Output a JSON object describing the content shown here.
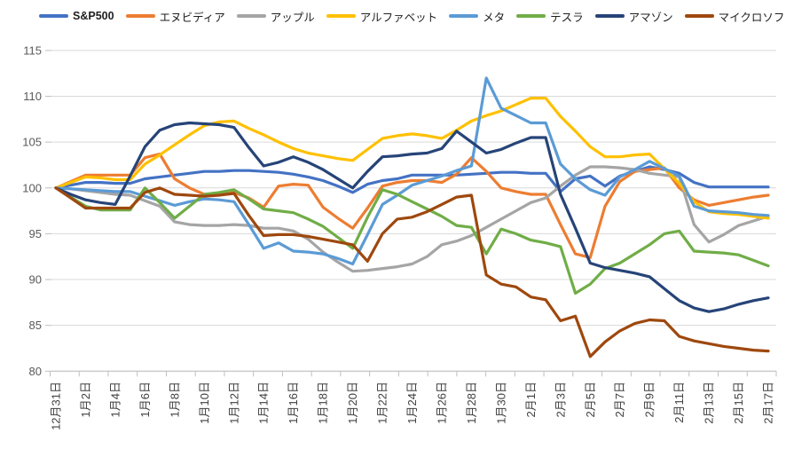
{
  "chart_data": {
    "type": "line",
    "title": "",
    "legend_position": "top",
    "grid": true,
    "ylim": [
      80,
      115
    ],
    "ytick_step": 5,
    "label_every": 2,
    "axis_colors": {
      "grid": "#D9D9D9",
      "axis": "#BFBFBF",
      "tick_text": "#595959",
      "x_label_text": "#404040"
    },
    "x": [
      "12月31日",
      "1月1日",
      "1月2日",
      "1月3日",
      "1月4日",
      "1月5日",
      "1月6日",
      "1月7日",
      "1月8日",
      "1月9日",
      "1月10日",
      "1月11日",
      "1月12日",
      "1月13日",
      "1月14日",
      "1月15日",
      "1月16日",
      "1月17日",
      "1月18日",
      "1月19日",
      "1月20日",
      "1月21日",
      "1月22日",
      "1月23日",
      "1月24日",
      "1月25日",
      "1月26日",
      "1月27日",
      "1月28日",
      "1月29日",
      "1月30日",
      "1月31日",
      "2月1日",
      "2月2日",
      "2月3日",
      "2月4日",
      "2月5日",
      "2月6日",
      "2月7日",
      "2月8日",
      "2月9日",
      "2月10日",
      "2月11日",
      "2月12日",
      "2月13日",
      "2月14日",
      "2月15日",
      "2月16日",
      "2月17日"
    ],
    "series": [
      {
        "key": "sp500",
        "name": "S&P500",
        "color": "#4472C4",
        "values": [
          100,
          100.3,
          100.6,
          100.6,
          100.5,
          100.5,
          101.0,
          101.2,
          101.4,
          101.6,
          101.8,
          101.8,
          101.9,
          101.9,
          101.8,
          101.7,
          101.5,
          101.2,
          100.8,
          100.2,
          99.5,
          100.4,
          100.8,
          101.0,
          101.4,
          101.4,
          101.4,
          101.4,
          101.5,
          101.6,
          101.7,
          101.7,
          101.6,
          101.6,
          99.6,
          101.0,
          101.3,
          100.2,
          101.3,
          101.8,
          102.3,
          102.0,
          101.6,
          100.6,
          100.1,
          100.1,
          100.1,
          100.1,
          100.1
        ]
      },
      {
        "key": "nvidia",
        "name": "エヌビディア",
        "color": "#ED7D31",
        "values": [
          100,
          100.7,
          101.4,
          101.4,
          101.4,
          101.4,
          103.3,
          103.7,
          101.0,
          100.0,
          99.3,
          99.3,
          99.5,
          98.9,
          97.9,
          100.2,
          100.4,
          100.3,
          97.9,
          96.7,
          95.6,
          97.8,
          100.2,
          100.6,
          100.8,
          100.8,
          100.6,
          101.5,
          103.3,
          101.8,
          100.0,
          99.6,
          99.3,
          99.3,
          96.0,
          92.8,
          92.4,
          98.0,
          100.7,
          101.8,
          102.0,
          102.2,
          100.0,
          98.7,
          98.1,
          98.4,
          98.7,
          99.0,
          99.2
        ]
      },
      {
        "key": "apple",
        "name": "アップル",
        "color": "#A5A5A5",
        "values": [
          100,
          99.9,
          99.7,
          99.5,
          99.3,
          99.2,
          98.6,
          98.0,
          96.3,
          96.0,
          95.9,
          95.9,
          96.0,
          95.9,
          95.6,
          95.6,
          95.3,
          94.4,
          93.0,
          91.9,
          90.9,
          91.0,
          91.2,
          91.4,
          91.7,
          92.5,
          93.8,
          94.2,
          94.8,
          95.7,
          96.6,
          97.5,
          98.4,
          98.9,
          100.2,
          101.4,
          102.3,
          102.3,
          102.2,
          102.0,
          101.6,
          101.4,
          101.2,
          96.0,
          94.1,
          94.9,
          95.9,
          96.4,
          96.9
        ]
      },
      {
        "key": "alphabet",
        "name": "アルファベット",
        "color": "#FFC000",
        "values": [
          100,
          100.6,
          101.2,
          101.1,
          100.9,
          100.9,
          102.6,
          103.6,
          104.7,
          105.8,
          106.8,
          107.2,
          107.3,
          106.5,
          105.8,
          105.0,
          104.3,
          103.8,
          103.5,
          103.2,
          103.0,
          104.2,
          105.4,
          105.7,
          105.9,
          105.7,
          105.4,
          106.3,
          107.3,
          107.9,
          108.4,
          109.1,
          109.8,
          109.8,
          107.8,
          106.2,
          104.5,
          103.4,
          103.4,
          103.6,
          103.7,
          102.1,
          100.5,
          98.5,
          97.4,
          97.2,
          97.1,
          96.9,
          96.7
        ]
      },
      {
        "key": "meta",
        "name": "メタ",
        "color": "#5B9BD5",
        "values": [
          100,
          99.9,
          99.8,
          99.7,
          99.6,
          99.6,
          99.1,
          98.6,
          98.1,
          98.5,
          98.8,
          98.7,
          98.5,
          96.0,
          93.4,
          94.0,
          93.1,
          93.0,
          92.8,
          92.3,
          91.7,
          94.9,
          98.2,
          99.2,
          100.3,
          100.8,
          101.3,
          101.9,
          102.4,
          112.0,
          108.7,
          107.9,
          107.1,
          107.1,
          102.6,
          101.0,
          99.8,
          99.2,
          101.2,
          102.0,
          102.9,
          102.1,
          101.3,
          98.0,
          97.5,
          97.4,
          97.3,
          97.1,
          97.0
        ]
      },
      {
        "key": "tesla",
        "name": "テスラ",
        "color": "#70AD47",
        "values": [
          100,
          99.0,
          98.0,
          97.6,
          97.6,
          97.6,
          100.0,
          98.4,
          96.7,
          98.0,
          99.3,
          99.5,
          99.8,
          98.8,
          97.7,
          97.5,
          97.3,
          96.6,
          95.8,
          94.6,
          93.4,
          96.8,
          99.8,
          99.3,
          98.5,
          97.7,
          96.9,
          95.9,
          95.7,
          92.8,
          95.5,
          95.0,
          94.3,
          94.0,
          93.6,
          88.5,
          89.5,
          91.2,
          91.8,
          92.8,
          93.8,
          95.0,
          95.3,
          93.1,
          93.0,
          92.9,
          92.7,
          92.1,
          91.5
        ]
      },
      {
        "key": "amazon",
        "name": "アマゾン",
        "color": "#264478",
        "values": [
          100,
          99.3,
          98.7,
          98.4,
          98.2,
          101.3,
          104.5,
          106.3,
          106.9,
          107.1,
          107.0,
          106.9,
          106.6,
          104.4,
          102.4,
          102.8,
          103.4,
          102.8,
          102.0,
          101.0,
          100.0,
          101.8,
          103.4,
          103.5,
          103.7,
          103.8,
          104.3,
          106.2,
          105.0,
          103.8,
          104.2,
          104.9,
          105.5,
          105.5,
          99.3,
          95.6,
          91.8,
          91.3,
          91.0,
          90.7,
          90.3,
          89.0,
          87.7,
          86.9,
          86.5,
          86.8,
          87.3,
          87.7,
          88.0
        ]
      },
      {
        "key": "microsoft",
        "name": "マイクロソフト",
        "color": "#9E480E",
        "values": [
          100,
          98.9,
          97.8,
          97.8,
          97.8,
          97.8,
          99.5,
          100.0,
          99.3,
          99.2,
          99.1,
          99.2,
          99.4,
          97.0,
          94.8,
          94.9,
          94.9,
          94.7,
          94.4,
          94.1,
          93.8,
          92.0,
          95.0,
          96.6,
          96.8,
          97.4,
          98.2,
          99.0,
          99.2,
          90.5,
          89.5,
          89.2,
          88.1,
          87.8,
          85.5,
          86.0,
          81.6,
          83.2,
          84.4,
          85.2,
          85.6,
          85.5,
          83.8,
          83.3,
          83.0,
          82.7,
          82.5,
          82.3,
          82.2
        ]
      }
    ]
  }
}
